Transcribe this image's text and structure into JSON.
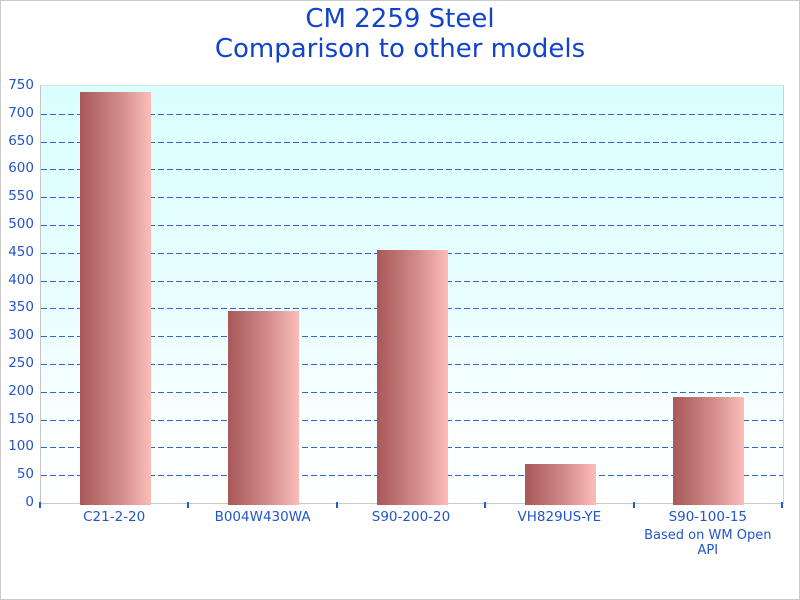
{
  "title": {
    "line1": "CM 2259 Steel",
    "line2": "Comparison to other models"
  },
  "annotation": "Based on WM Open API",
  "chart_data": {
    "type": "bar",
    "title": "CM 2259 Steel",
    "subtitle": "Comparison to other models",
    "categories": [
      "C21-2-20",
      "B004W430WA",
      "S90-200-20",
      "VH829US-YE",
      "S90-100-15"
    ],
    "values": [
      740,
      345,
      455,
      70,
      190
    ],
    "xlabel": "",
    "ylabel": "",
    "ylim": [
      0,
      750
    ],
    "ytick_step": 50,
    "grid": "horizontal-dashed",
    "legend": "none",
    "annotation": "Based on WM Open API",
    "colors": {
      "title_text": "#1144cc",
      "axis_text": "#2255cc",
      "gridline": "#3366cc",
      "bar_gradient_left": "#a85858",
      "bar_gradient_right": "#fcbdb9",
      "plot_bg_top": "#daffff",
      "plot_bg_bottom": "#ffffff",
      "axis_line": "#c9c9c9"
    }
  }
}
